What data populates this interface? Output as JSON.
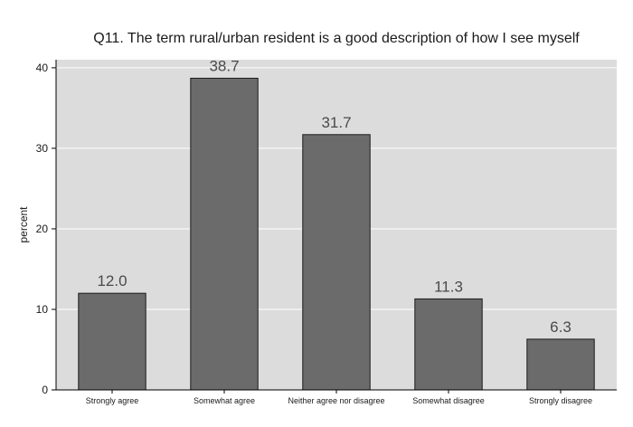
{
  "chart_data": {
    "type": "bar",
    "title": "Q11. The term rural/urban resident is a good description of how I see myself",
    "xlabel": "",
    "ylabel": "percent",
    "categories": [
      "Strongly agree",
      "Somewhat agree",
      "Neither agree nor disagree",
      "Somewhat disagree",
      "Strongly disagree"
    ],
    "values": [
      12.0,
      38.7,
      31.7,
      11.3,
      6.3
    ],
    "value_labels": [
      "12.0",
      "38.7",
      "31.7",
      "11.3",
      "6.3"
    ],
    "ylim": [
      0,
      41
    ],
    "yticks": [
      0,
      10,
      20,
      30,
      40
    ],
    "grid": true,
    "legend": "none",
    "colors": {
      "bar_fill": "#6b6b6b",
      "bar_stroke": "#1a1a1a",
      "plot_background": "#dcdcdc",
      "gridline": "#ffffff",
      "text": "#1a1a1a",
      "value_label": "#4a4a4a"
    }
  }
}
